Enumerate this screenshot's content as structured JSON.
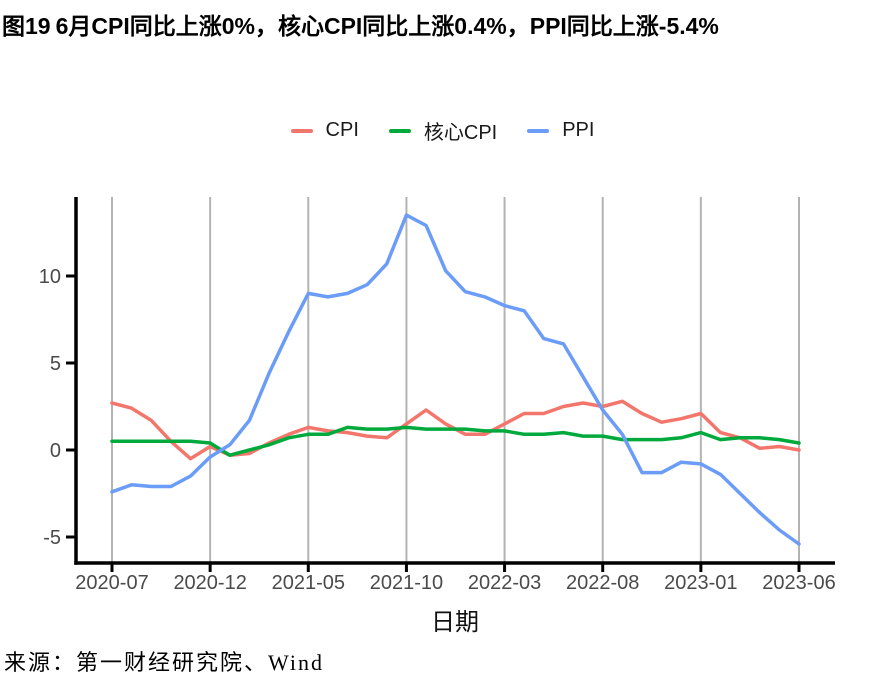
{
  "title": {
    "figure_label": "图19",
    "text": "6月CPI同比上涨0%，核心CPI同比上涨0.4%，PPI同比上涨-5.4%"
  },
  "source": "来源：第一财经研究院、Wind",
  "colors": {
    "axis": "#000000",
    "gridline": "#B3B3B3",
    "tick_text": "#4A4A4A"
  },
  "chart_data": {
    "type": "line",
    "title": "",
    "xlabel": "日期",
    "ylabel": "",
    "grid": "vertical-only",
    "legend_position": "top-center",
    "ylim": [
      -6.5,
      14.5
    ],
    "y_ticks": [
      10,
      5,
      0,
      -5
    ],
    "x_ticks": [
      "2020-07",
      "2020-12",
      "2021-05",
      "2021-10",
      "2022-03",
      "2022-08",
      "2023-01",
      "2023-06"
    ],
    "x": [
      "2020-07",
      "2020-08",
      "2020-09",
      "2020-10",
      "2020-11",
      "2020-12",
      "2021-01",
      "2021-02",
      "2021-03",
      "2021-04",
      "2021-05",
      "2021-06",
      "2021-07",
      "2021-08",
      "2021-09",
      "2021-10",
      "2021-11",
      "2021-12",
      "2022-01",
      "2022-02",
      "2022-03",
      "2022-04",
      "2022-05",
      "2022-06",
      "2022-07",
      "2022-08",
      "2022-09",
      "2022-10",
      "2022-11",
      "2022-12",
      "2023-01",
      "2023-02",
      "2023-03",
      "2023-04",
      "2023-05",
      "2023-06"
    ],
    "series": [
      {
        "name": "CPI",
        "color": "#F3766D",
        "values": [
          2.7,
          2.4,
          1.7,
          0.5,
          -0.5,
          0.2,
          -0.3,
          -0.2,
          0.4,
          0.9,
          1.3,
          1.1,
          1.0,
          0.8,
          0.7,
          1.5,
          2.3,
          1.5,
          0.9,
          0.9,
          1.5,
          2.1,
          2.1,
          2.5,
          2.7,
          2.5,
          2.8,
          2.1,
          1.6,
          1.8,
          2.1,
          1.0,
          0.7,
          0.1,
          0.2,
          0.0
        ]
      },
      {
        "name": "核心CPI",
        "color": "#00A93C",
        "values": [
          0.5,
          0.5,
          0.5,
          0.5,
          0.5,
          0.4,
          -0.3,
          0.0,
          0.3,
          0.7,
          0.9,
          0.9,
          1.3,
          1.2,
          1.2,
          1.3,
          1.2,
          1.2,
          1.2,
          1.1,
          1.1,
          0.9,
          0.9,
          1.0,
          0.8,
          0.8,
          0.6,
          0.6,
          0.6,
          0.7,
          1.0,
          0.6,
          0.7,
          0.7,
          0.6,
          0.4
        ]
      },
      {
        "name": "PPI",
        "color": "#6B9CF8",
        "values": [
          -2.4,
          -2.0,
          -2.1,
          -2.1,
          -1.5,
          -0.4,
          0.3,
          1.7,
          4.4,
          6.8,
          9.0,
          8.8,
          9.0,
          9.5,
          10.7,
          13.5,
          12.9,
          10.3,
          9.1,
          8.8,
          8.3,
          8.0,
          6.4,
          6.1,
          4.2,
          2.3,
          0.9,
          -1.3,
          -1.3,
          -0.7,
          -0.8,
          -1.4,
          -2.5,
          -3.6,
          -4.6,
          -5.4
        ]
      }
    ]
  }
}
